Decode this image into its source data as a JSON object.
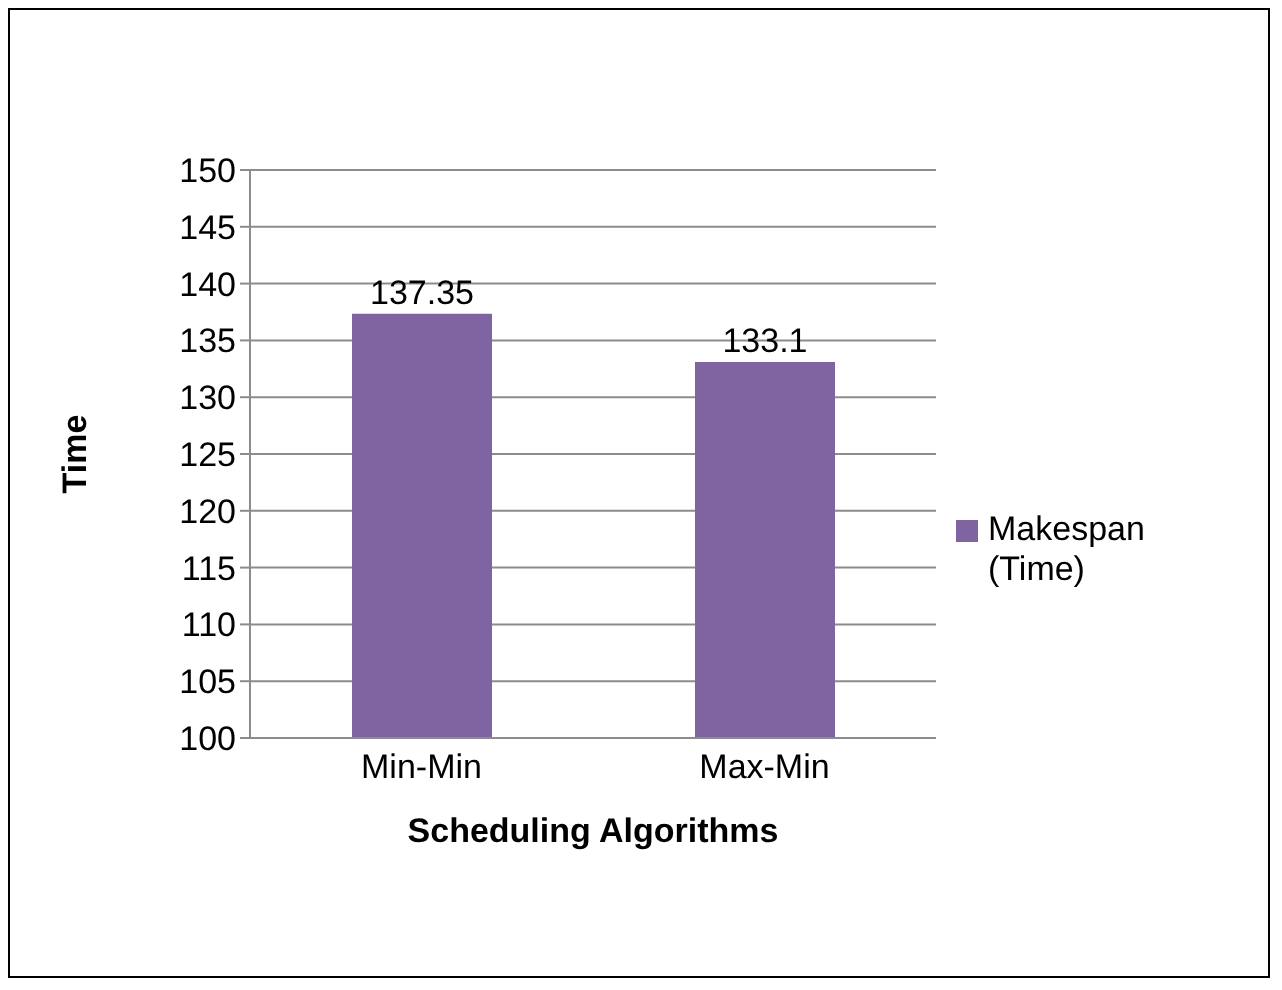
{
  "chart_data": {
    "type": "bar",
    "xlabel": "Scheduling Algorithms",
    "ylabel": "Time",
    "categories": [
      "Min-Min",
      "Max-Min"
    ],
    "series": [
      {
        "name": "Makespan (Time)",
        "color": "#8064a2",
        "values": [
          137.35,
          133.1
        ]
      }
    ],
    "ylim": [
      100,
      150
    ],
    "yticks": [
      100,
      105,
      110,
      115,
      120,
      125,
      130,
      135,
      140,
      145,
      150
    ],
    "grid": "y",
    "legend": "right",
    "data_labels": true
  }
}
